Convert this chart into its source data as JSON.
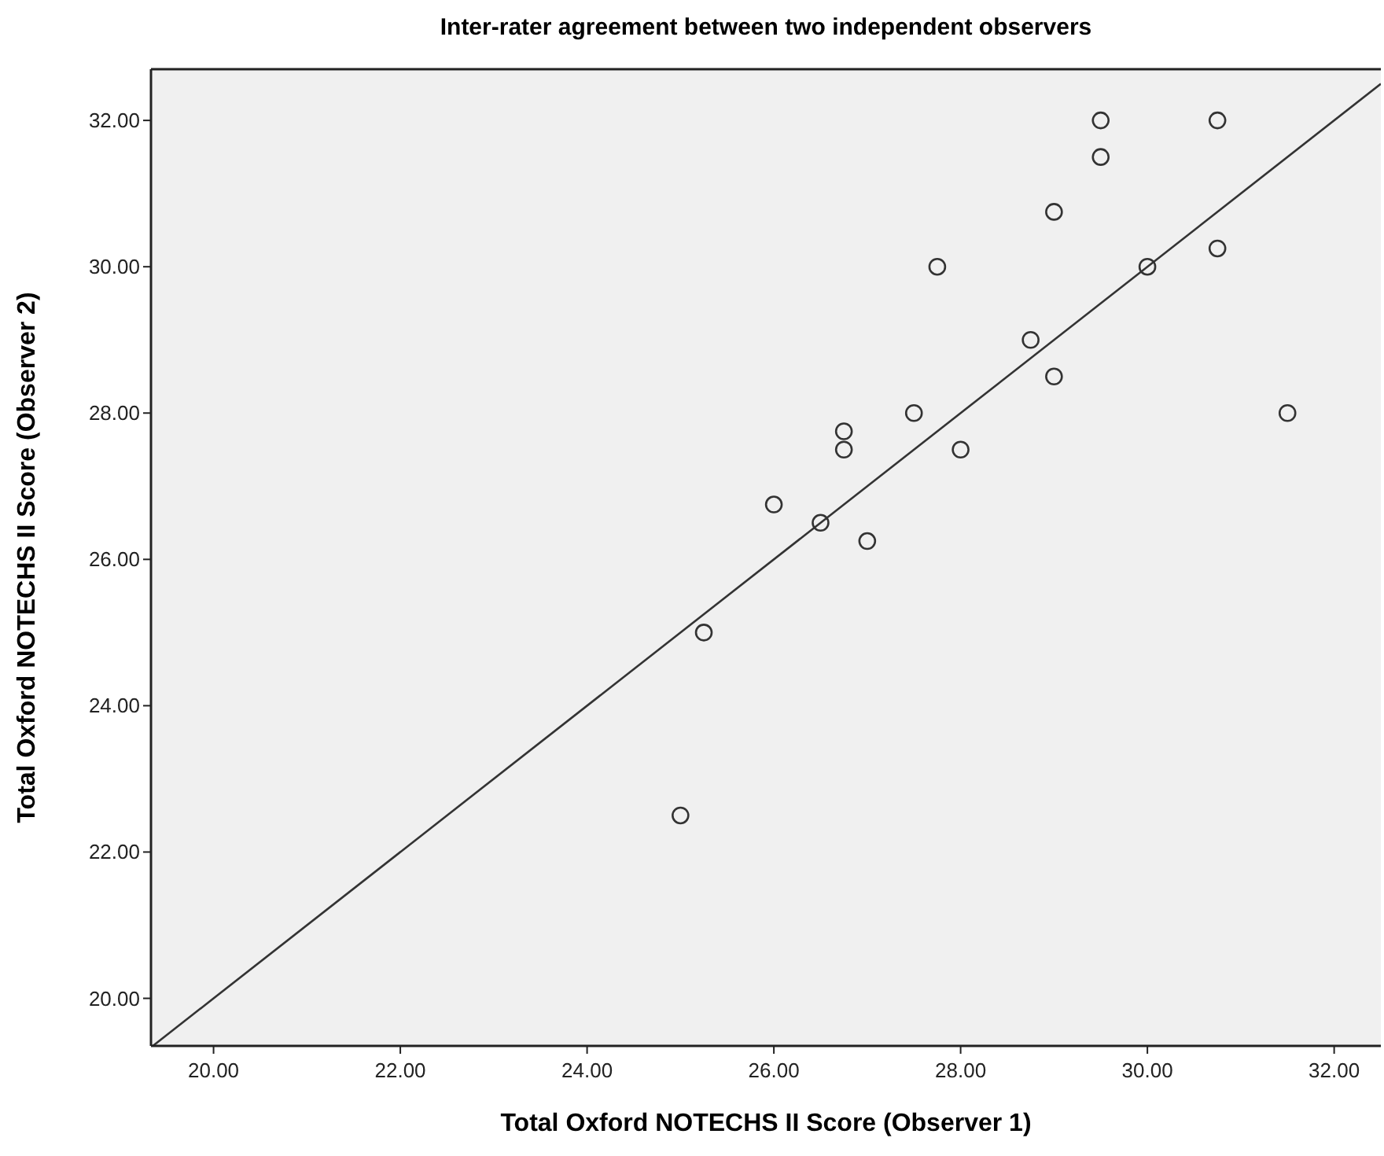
{
  "chart_data": {
    "type": "scatter",
    "title": "Inter-rater agreement between two independent observers",
    "xlabel": "Total Oxford NOTECHS II Score (Observer 1)",
    "ylabel": "Total Oxford NOTECHS II Score (Observer 2)",
    "xlim": [
      19.33,
      32.5
    ],
    "ylim": [
      19.35,
      32.7
    ],
    "xticks": [
      {
        "value": 20,
        "label": "20.00"
      },
      {
        "value": 22,
        "label": "22.00"
      },
      {
        "value": 24,
        "label": "24.00"
      },
      {
        "value": 26,
        "label": "26.00"
      },
      {
        "value": 28,
        "label": "28.00"
      },
      {
        "value": 30,
        "label": "30.00"
      },
      {
        "value": 32,
        "label": "32.00"
      }
    ],
    "yticks": [
      {
        "value": 20,
        "label": "20.00"
      },
      {
        "value": 22,
        "label": "22.00"
      },
      {
        "value": 24,
        "label": "24.00"
      },
      {
        "value": 26,
        "label": "26.00"
      },
      {
        "value": 28,
        "label": "28.00"
      },
      {
        "value": 30,
        "label": "30.00"
      },
      {
        "value": 32,
        "label": "32.00"
      }
    ],
    "grid": false,
    "series": [
      {
        "marker": "circle",
        "color": "#333333",
        "x": [
          25,
          25.25,
          26,
          26.5,
          26.75,
          26.75,
          27,
          27.5,
          27.75,
          28,
          28.75,
          29,
          29,
          29.5,
          29.5,
          30,
          30.75,
          30.75,
          31.5
        ],
        "values": [
          22.5,
          25,
          26.75,
          26.5,
          27.75,
          27.5,
          26.25,
          28,
          30,
          27.5,
          29,
          30.75,
          28.5,
          32,
          31.5,
          30,
          32,
          30.25,
          28
        ]
      },
      {
        "type": "line",
        "color": "#333333",
        "x": [
          19.35,
          32.5
        ],
        "values": [
          19.35,
          32.5
        ]
      }
    ]
  }
}
